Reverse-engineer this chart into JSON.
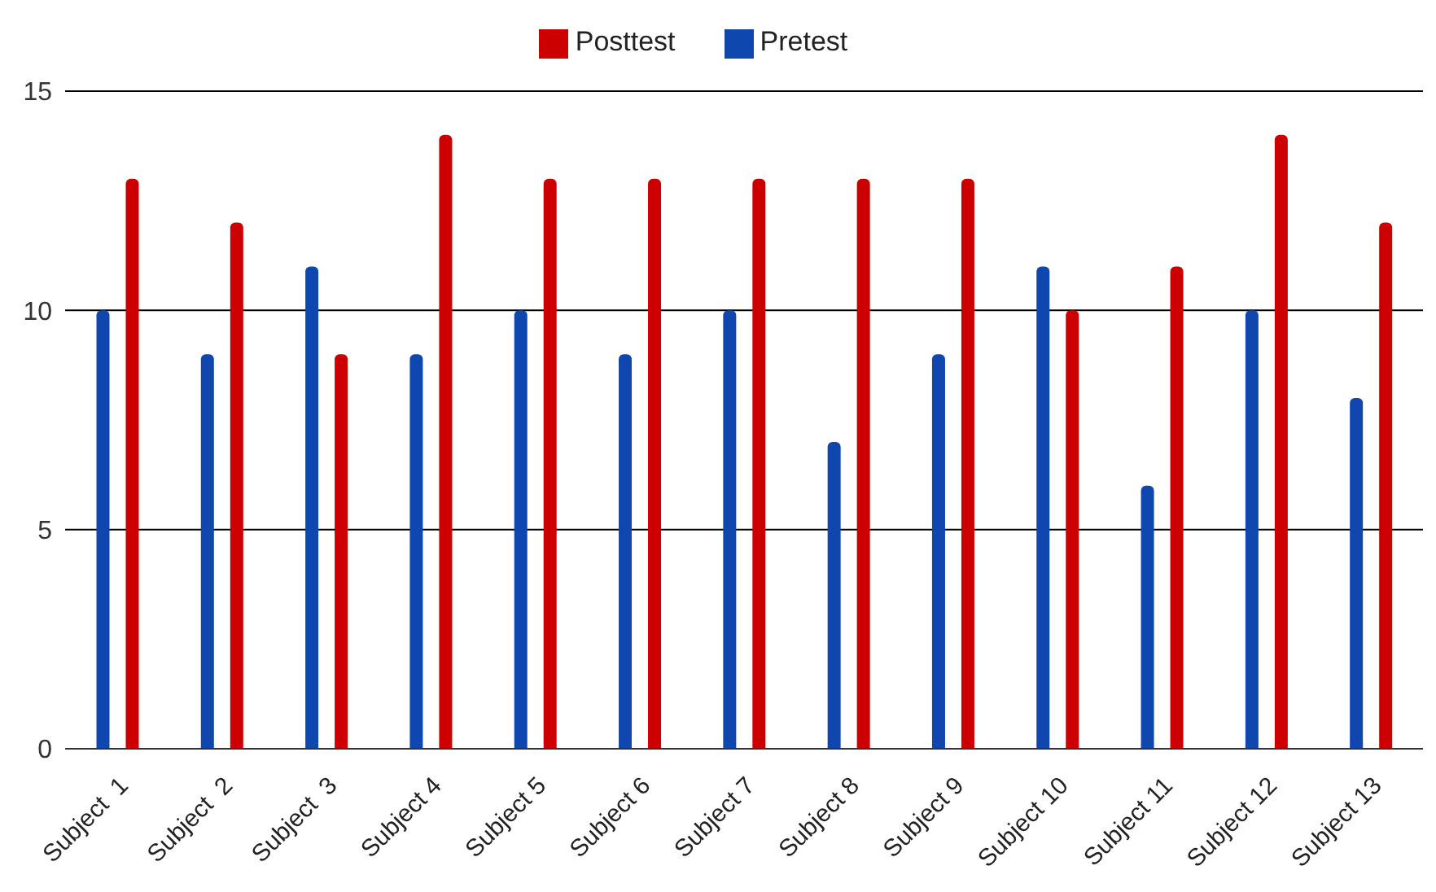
{
  "chart_data": {
    "type": "bar",
    "categories": [
      "Subject  1",
      "Subject  2",
      "Subject  3",
      "Subject 4",
      "Subject 5",
      "Subject 6",
      "Subject 7",
      "Subject 8",
      "Subject 9",
      "Subject 10",
      "Subject 11",
      "Subject 12",
      "Subject 13"
    ],
    "series": [
      {
        "name": "Pretest",
        "color": "#0f47af",
        "values": [
          10,
          9,
          11,
          9,
          10,
          9,
          10,
          7,
          9,
          11,
          6,
          10,
          8
        ]
      },
      {
        "name": "Posttest",
        "color": "#cc0000",
        "values": [
          13,
          12,
          9,
          14,
          13,
          13,
          13,
          13,
          13,
          10,
          11,
          14,
          12
        ]
      }
    ],
    "ylim": [
      0,
      15
    ],
    "yticks": [
      0,
      5,
      10,
      15
    ],
    "grid": "y",
    "legend": "top"
  }
}
